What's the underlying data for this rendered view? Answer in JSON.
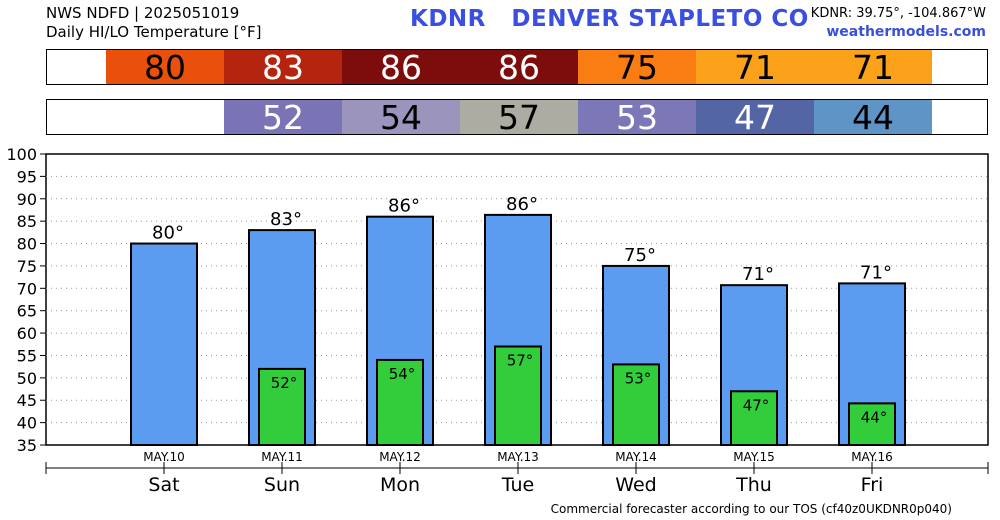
{
  "header": {
    "line1": "NWS NDFD | 2025051019",
    "line2": "Daily HI/LO Temperature [°F]",
    "station_code": "KDNR",
    "station_name": "DENVER STAPLETO CO",
    "coords": "KDNR: 39.75°, -104.867°W",
    "site": "weathermodels.com"
  },
  "strips": {
    "hi": [
      {
        "text": "80",
        "bg": "#e8500c",
        "fg": "#000000"
      },
      {
        "text": "83",
        "bg": "#b5240e",
        "fg": "#ffffff"
      },
      {
        "text": "86",
        "bg": "#7d0c0c",
        "fg": "#ffffff"
      },
      {
        "text": "86",
        "bg": "#7d0c0c",
        "fg": "#ffffff"
      },
      {
        "text": "75",
        "bg": "#f97d12",
        "fg": "#000000"
      },
      {
        "text": "71",
        "bg": "#fba21a",
        "fg": "#000000"
      },
      {
        "text": "71",
        "bg": "#fba21a",
        "fg": "#000000"
      }
    ],
    "lo": [
      {
        "text": "",
        "bg": "#ffffff",
        "fg": "#000000"
      },
      {
        "text": "52",
        "bg": "#7a74b6",
        "fg": "#ffffff"
      },
      {
        "text": "54",
        "bg": "#9b95bd",
        "fg": "#000000"
      },
      {
        "text": "57",
        "bg": "#adaca2",
        "fg": "#000000"
      },
      {
        "text": "53",
        "bg": "#7c78b7",
        "fg": "#ffffff"
      },
      {
        "text": "47",
        "bg": "#5465a6",
        "fg": "#ffffff"
      },
      {
        "text": "44",
        "bg": "#5f94c7",
        "fg": "#000000"
      }
    ]
  },
  "chart_data": {
    "type": "bar",
    "categories": [
      "Sat",
      "Sun",
      "Mon",
      "Tue",
      "Wed",
      "Thu",
      "Fri"
    ],
    "dates": [
      "MAY.10",
      "MAY.11",
      "MAY.12",
      "MAY.13",
      "MAY.14",
      "MAY.15",
      "MAY.16"
    ],
    "series": [
      {
        "values": [
          80,
          83,
          86,
          86.4,
          75,
          70.7,
          71.1
        ],
        "labels": [
          "80°",
          "83°",
          "86°",
          "86°",
          "75°",
          "71°",
          "71°"
        ],
        "color": "#5b9bf0"
      },
      {
        "values": [
          null,
          52,
          54,
          57,
          53,
          47,
          44.3
        ],
        "labels": [
          "",
          "52°",
          "54°",
          "57°",
          "53°",
          "47°",
          "44°"
        ],
        "color": "#33cc3a"
      }
    ],
    "yticks": [
      35,
      40,
      45,
      50,
      55,
      60,
      65,
      70,
      75,
      80,
      85,
      90,
      95,
      100
    ],
    "ylim": [
      35,
      100
    ],
    "grid": true
  },
  "footer": "Commercial forecaster according to our TOS (cf40z0UKDNR0p040)"
}
